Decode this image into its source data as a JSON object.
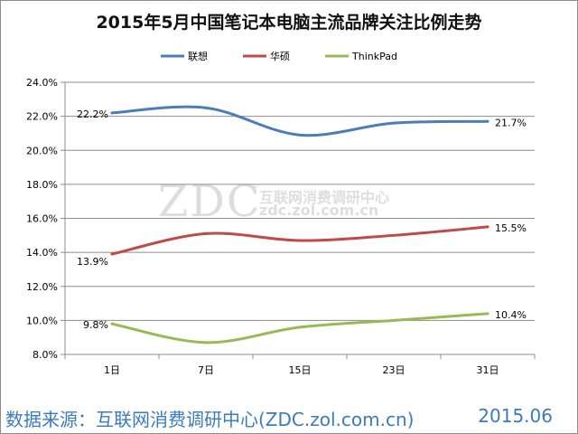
{
  "title": "2015年5月中国笔记本电脑主流品牌关注比例走势",
  "footer": {
    "source": "数据来源：互联网消费调研中心(ZDC.zol.com.cn)",
    "date": "2015.06"
  },
  "watermark": {
    "logo": "ZDC",
    "cn": "互联网消费调研中心",
    "url": "zdc.zol.com.cn"
  },
  "chart_data": {
    "type": "line",
    "title": "2015年5月中国笔记本电脑主流品牌关注比例走势",
    "xlabel": "",
    "ylabel": "",
    "categories": [
      "1日",
      "7日",
      "15日",
      "23日",
      "31日"
    ],
    "y_ticks": [
      "8.0%",
      "10.0%",
      "12.0%",
      "14.0%",
      "16.0%",
      "18.0%",
      "20.0%",
      "22.0%",
      "24.0%"
    ],
    "ylim": [
      8.0,
      24.0
    ],
    "grid": true,
    "legend_position": "top",
    "series": [
      {
        "name": "联想",
        "color": "#4a7ebb",
        "values": [
          22.2,
          22.5,
          20.9,
          21.6,
          21.7
        ],
        "labels": [
          "22.2%",
          "",
          "",
          "",
          "21.7%"
        ]
      },
      {
        "name": "华硕",
        "color": "#be4b48",
        "values": [
          13.9,
          15.1,
          14.7,
          15.0,
          15.5
        ],
        "labels": [
          "13.9%",
          "",
          "",
          "",
          "15.5%"
        ]
      },
      {
        "name": "ThinkPad",
        "color": "#98b954",
        "values": [
          9.8,
          8.7,
          9.6,
          10.0,
          10.4
        ],
        "labels": [
          "9.8%",
          "",
          "",
          "",
          "10.4%"
        ]
      }
    ]
  }
}
